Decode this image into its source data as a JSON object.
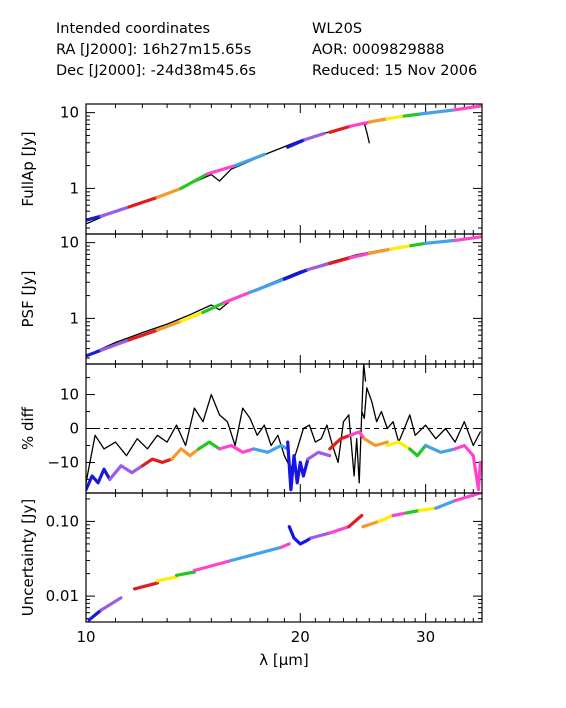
{
  "header": {
    "left": [
      "Intended coordinates",
      "RA  [J2000]: 16h27m15.65s",
      "Dec [J2000]: -24d38m45.6s"
    ],
    "right": [
      "WL20S",
      "AOR:  0009829888",
      "Reduced: 15 Nov 2006"
    ]
  },
  "colors": {
    "reference": "#000000",
    "segments": [
      "#1b1bd6",
      "#9b5de5",
      "#e21c1c",
      "#f59a2a",
      "#22c722",
      "#ff44cc",
      "#44a0e8",
      "#ffee00",
      "#1515e8",
      "#e5e5e5"
    ]
  },
  "chart_data": [
    {
      "type": "line",
      "ylabel": "FullAp [Jy]",
      "yscale": "log",
      "ylim": [
        0.25,
        13
      ],
      "yticks": [
        1,
        10
      ],
      "ytick_labels": [
        "1",
        "10"
      ],
      "xlim": [
        10,
        36
      ],
      "series": [
        {
          "color": "#000000",
          "x": [
            10,
            11,
            12,
            13,
            14,
            15,
            15.4,
            16,
            18,
            20,
            22,
            24,
            24.7,
            25,
            26,
            28,
            30,
            32,
            34,
            35.8
          ],
          "y": [
            0.34,
            0.5,
            0.67,
            0.85,
            1.15,
            1.52,
            1.25,
            1.8,
            2.9,
            4.3,
            5.6,
            7.0,
            7.0,
            7.5,
            8.2,
            9.1,
            10.0,
            10.7,
            11.4,
            12.2
          ]
        },
        {
          "color": "#000000",
          "x": [
            24.6,
            24.8,
            25.0
          ],
          "y": [
            7.2,
            5.5,
            4.0
          ]
        },
        {
          "color": "#1b1bd6",
          "x": [
            10.0,
            10.5
          ],
          "y": [
            0.38,
            0.43
          ]
        },
        {
          "color": "#9b5de5",
          "x": [
            10.5,
            11.5
          ],
          "y": [
            0.43,
            0.57
          ]
        },
        {
          "color": "#e21c1c",
          "x": [
            11.5,
            12.6
          ],
          "y": [
            0.57,
            0.76
          ]
        },
        {
          "color": "#f59a2a",
          "x": [
            12.6,
            13.6
          ],
          "y": [
            0.76,
            1.0
          ]
        },
        {
          "color": "#22c722",
          "x": [
            13.6,
            14.8
          ],
          "y": [
            1.0,
            1.55
          ]
        },
        {
          "color": "#ff44cc",
          "x": [
            14.8,
            16.2
          ],
          "y": [
            1.55,
            2.0
          ]
        },
        {
          "color": "#44a0e8",
          "x": [
            16.2,
            17.8
          ],
          "y": [
            2.0,
            2.8
          ]
        },
        {
          "color": "#1515e8",
          "x": [
            19.2,
            20.3
          ],
          "y": [
            3.5,
            4.4
          ]
        },
        {
          "color": "#9b5de5",
          "x": [
            20.3,
            21.6
          ],
          "y": [
            4.4,
            5.3
          ]
        },
        {
          "color": "#e21c1c",
          "x": [
            22.0,
            23.5
          ],
          "y": [
            5.5,
            6.6
          ]
        },
        {
          "color": "#ff44cc",
          "x": [
            23.5,
            25.0
          ],
          "y": [
            6.6,
            7.5
          ]
        },
        {
          "color": "#f59a2a",
          "x": [
            25.0,
            26.5
          ],
          "y": [
            7.5,
            8.3
          ]
        },
        {
          "color": "#ffee00",
          "x": [
            26.5,
            28.0
          ],
          "y": [
            8.3,
            9.0
          ]
        },
        {
          "color": "#22c722",
          "x": [
            28.0,
            29.5
          ],
          "y": [
            9.0,
            9.6
          ]
        },
        {
          "color": "#44a0e8",
          "x": [
            29.5,
            33.0
          ],
          "y": [
            9.6,
            10.9
          ]
        },
        {
          "color": "#ff44cc",
          "x": [
            33.0,
            35.8
          ],
          "y": [
            10.9,
            12.2
          ]
        }
      ]
    },
    {
      "type": "line",
      "ylabel": "PSF [Jy]",
      "yscale": "log",
      "ylim": [
        0.25,
        13
      ],
      "yticks": [
        1,
        10
      ],
      "ytick_labels": [
        "1",
        "10"
      ],
      "xlim": [
        10,
        36
      ],
      "series": [
        {
          "color": "#000000",
          "x": [
            10,
            11,
            12,
            13,
            14,
            15,
            15.4,
            16,
            18,
            20,
            22,
            24,
            26,
            28,
            30,
            32,
            34,
            35.8
          ],
          "y": [
            0.32,
            0.48,
            0.65,
            0.84,
            1.12,
            1.5,
            1.3,
            1.75,
            2.8,
            4.2,
            5.5,
            6.9,
            8.0,
            9.0,
            9.8,
            10.6,
            11.2,
            11.9
          ]
        },
        {
          "color": "#1b1bd6",
          "x": [
            10.0,
            10.5
          ],
          "y": [
            0.32,
            0.38
          ]
        },
        {
          "color": "#9b5de5",
          "x": [
            10.5,
            11.5
          ],
          "y": [
            0.38,
            0.52
          ]
        },
        {
          "color": "#e21c1c",
          "x": [
            11.5,
            12.6
          ],
          "y": [
            0.52,
            0.7
          ]
        },
        {
          "color": "#f59a2a",
          "x": [
            12.6,
            13.6
          ],
          "y": [
            0.7,
            0.92
          ]
        },
        {
          "color": "#ffee00",
          "x": [
            13.6,
            14.6
          ],
          "y": [
            0.92,
            1.2
          ]
        },
        {
          "color": "#22c722",
          "x": [
            14.6,
            15.6
          ],
          "y": [
            1.2,
            1.6
          ]
        },
        {
          "color": "#ff44cc",
          "x": [
            15.6,
            17.0
          ],
          "y": [
            1.6,
            2.2
          ]
        },
        {
          "color": "#44a0e8",
          "x": [
            17.0,
            19.0
          ],
          "y": [
            2.2,
            3.3
          ]
        },
        {
          "color": "#1515e8",
          "x": [
            19.0,
            20.5
          ],
          "y": [
            3.3,
            4.4
          ]
        },
        {
          "color": "#9b5de5",
          "x": [
            20.5,
            22.0
          ],
          "y": [
            4.4,
            5.3
          ]
        },
        {
          "color": "#e21c1c",
          "x": [
            22.0,
            23.5
          ],
          "y": [
            5.3,
            6.3
          ]
        },
        {
          "color": "#ff44cc",
          "x": [
            23.5,
            25.0
          ],
          "y": [
            6.3,
            7.2
          ]
        },
        {
          "color": "#f59a2a",
          "x": [
            25.0,
            26.8
          ],
          "y": [
            7.2,
            8.2
          ]
        },
        {
          "color": "#ffee00",
          "x": [
            26.8,
            28.6
          ],
          "y": [
            8.2,
            9.1
          ]
        },
        {
          "color": "#22c722",
          "x": [
            28.6,
            30.0
          ],
          "y": [
            9.1,
            9.8
          ]
        },
        {
          "color": "#44a0e8",
          "x": [
            30.0,
            33.0
          ],
          "y": [
            9.8,
            10.7
          ]
        },
        {
          "color": "#ff44cc",
          "x": [
            33.0,
            35.8
          ],
          "y": [
            10.7,
            11.9
          ]
        }
      ]
    },
    {
      "type": "line",
      "ylabel": "% diff",
      "yscale": "linear",
      "ylim": [
        -19,
        19
      ],
      "yticks": [
        10,
        0,
        -10
      ],
      "ytick_labels": [
        "10",
        "0",
        "−10"
      ],
      "xlim": [
        10,
        36
      ],
      "reference_line": 0,
      "series": [
        {
          "color": "#000000",
          "x": [
            10,
            10.3,
            10.6,
            11.0,
            11.4,
            11.8,
            12.2,
            12.6,
            13.0,
            13.4,
            13.8,
            14.2,
            14.6,
            15.0,
            15.4,
            15.8,
            16.2,
            16.6,
            17.0,
            17.4,
            17.8,
            18.2,
            18.6,
            19.0,
            19.4,
            19.8,
            20.2,
            20.6,
            21.0,
            21.4,
            21.8,
            22.2,
            22.6,
            23.0,
            23.4,
            23.8,
            24.0,
            24.2,
            24.4,
            24.6,
            24.8,
            25.2,
            25.6,
            26.0,
            26.5,
            27.0,
            27.5,
            28.0,
            28.5,
            29.0,
            30.0,
            31.0,
            32.0,
            33.0,
            34.0,
            35.0,
            35.8
          ],
          "y": [
            -16,
            -2,
            -6,
            -4,
            -8,
            -3,
            -6,
            -2,
            -4,
            1,
            -5,
            6,
            2,
            10,
            4,
            2,
            -5,
            6,
            3,
            -2,
            1,
            -5,
            -2,
            -8,
            -12,
            -6,
            0,
            1,
            -4,
            -3,
            1,
            -5,
            -10,
            2,
            4,
            -14,
            -3,
            -16,
            5,
            3,
            12,
            8,
            2,
            5,
            0,
            2,
            -4,
            0,
            4,
            -2,
            1,
            -3,
            0,
            -4,
            2,
            -5,
            -1
          ]
        },
        {
          "color": "#000000",
          "x": [
            24.4,
            24.55,
            24.7
          ],
          "y": [
            5,
            19,
            14
          ]
        },
        {
          "color": "#1b1bd6",
          "x": [
            10.0,
            10.2,
            10.4,
            10.6,
            10.8
          ],
          "y": [
            -18,
            -14,
            -16,
            -12,
            -15
          ]
        },
        {
          "color": "#9b5de5",
          "x": [
            10.8,
            11.2,
            11.6,
            12.0
          ],
          "y": [
            -15,
            -11,
            -13,
            -11
          ]
        },
        {
          "color": "#e21c1c",
          "x": [
            12.0,
            12.4,
            12.8,
            13.2
          ],
          "y": [
            -11,
            -9,
            -10,
            -9
          ]
        },
        {
          "color": "#f59a2a",
          "x": [
            13.2,
            13.6,
            14.0,
            14.4
          ],
          "y": [
            -9,
            -6,
            -8,
            -6
          ]
        },
        {
          "color": "#22c722",
          "x": [
            14.4,
            14.9,
            15.4
          ],
          "y": [
            -6,
            -4,
            -6
          ]
        },
        {
          "color": "#ff44cc",
          "x": [
            15.4,
            16.0,
            16.6,
            17.2
          ],
          "y": [
            -6,
            -5,
            -7,
            -6
          ]
        },
        {
          "color": "#44a0e8",
          "x": [
            17.2,
            18.0,
            18.8,
            19.2
          ],
          "y": [
            -6,
            -7,
            -5,
            -6
          ]
        },
        {
          "color": "#1515e8",
          "x": [
            19.2,
            19.4,
            19.6,
            19.8,
            20.0,
            20.2,
            20.5
          ],
          "y": [
            -4,
            -18,
            -8,
            -16,
            -10,
            -14,
            -9
          ]
        },
        {
          "color": "#9b5de5",
          "x": [
            20.5,
            21.2,
            22.0
          ],
          "y": [
            -9,
            -7,
            -8
          ]
        },
        {
          "color": "#e21c1c",
          "x": [
            22.0,
            22.8,
            23.5
          ],
          "y": [
            -6,
            -3,
            -2
          ]
        },
        {
          "color": "#ff44cc",
          "x": [
            23.5,
            24.2,
            24.6
          ],
          "y": [
            -2,
            -1,
            -3
          ]
        },
        {
          "color": "#f59a2a",
          "x": [
            24.6,
            25.5,
            26.5
          ],
          "y": [
            -3,
            -5,
            -4
          ]
        },
        {
          "color": "#ffee00",
          "x": [
            26.5,
            27.5,
            28.5
          ],
          "y": [
            -5,
            -4,
            -6
          ]
        },
        {
          "color": "#22c722",
          "x": [
            28.5,
            29.2,
            30.0
          ],
          "y": [
            -6,
            -8,
            -5
          ]
        },
        {
          "color": "#44a0e8",
          "x": [
            30.0,
            31.5,
            33.0
          ],
          "y": [
            -5,
            -7,
            -6
          ]
        },
        {
          "color": "#ff44cc",
          "x": [
            33.0,
            34.0,
            35.0,
            35.6,
            35.8
          ],
          "y": [
            -6,
            -5,
            -8,
            -18,
            -10
          ]
        }
      ]
    },
    {
      "type": "line",
      "ylabel": "Uncertainty [Jy]",
      "yscale": "log",
      "ylim": [
        0.0045,
        0.24
      ],
      "yticks": [
        0.01,
        0.1
      ],
      "ytick_labels": [
        "0.01",
        "0.10"
      ],
      "xlim": [
        10,
        36
      ],
      "xticks": [
        10,
        20,
        30
      ],
      "xtick_labels": [
        "10",
        "20",
        "30"
      ],
      "xlabel": "λ [μm]",
      "series": [
        {
          "color": "#1b1bd6",
          "x": [
            10.1,
            10.5
          ],
          "y": [
            0.0048,
            0.0065
          ]
        },
        {
          "color": "#9b5de5",
          "x": [
            10.5,
            11.2
          ],
          "y": [
            0.0065,
            0.0095
          ]
        },
        {
          "color": "#e21c1c",
          "x": [
            11.7,
            12.6
          ],
          "y": [
            0.0125,
            0.015
          ]
        },
        {
          "color": "#ffee00",
          "x": [
            12.6,
            13.4
          ],
          "y": [
            0.016,
            0.018
          ]
        },
        {
          "color": "#22c722",
          "x": [
            13.4,
            14.2
          ],
          "y": [
            0.019,
            0.021
          ]
        },
        {
          "color": "#ff44cc",
          "x": [
            14.2,
            16.0
          ],
          "y": [
            0.022,
            0.03
          ]
        },
        {
          "color": "#44a0e8",
          "x": [
            16.0,
            18.8
          ],
          "y": [
            0.03,
            0.045
          ]
        },
        {
          "color": "#ff44cc",
          "x": [
            18.8,
            19.3
          ],
          "y": [
            0.045,
            0.05
          ]
        },
        {
          "color": "#1515e8",
          "x": [
            19.3,
            19.6,
            20.0,
            20.4,
            20.7
          ],
          "y": [
            0.085,
            0.06,
            0.05,
            0.055,
            0.06
          ]
        },
        {
          "color": "#9b5de5",
          "x": [
            20.7,
            22.0
          ],
          "y": [
            0.06,
            0.07
          ]
        },
        {
          "color": "#ff44cc",
          "x": [
            22.0,
            23.4
          ],
          "y": [
            0.07,
            0.085
          ]
        },
        {
          "color": "#e21c1c",
          "x": [
            23.4,
            24.0,
            24.4
          ],
          "y": [
            0.085,
            0.105,
            0.12
          ]
        },
        {
          "color": "#f59a2a",
          "x": [
            24.5,
            25.8
          ],
          "y": [
            0.085,
            0.1
          ]
        },
        {
          "color": "#ffee00",
          "x": [
            25.8,
            27.0
          ],
          "y": [
            0.1,
            0.12
          ]
        },
        {
          "color": "#ff44cc",
          "x": [
            27.0,
            28.2
          ],
          "y": [
            0.12,
            0.13
          ]
        },
        {
          "color": "#22c722",
          "x": [
            28.2,
            29.4
          ],
          "y": [
            0.13,
            0.14
          ]
        },
        {
          "color": "#ffee00",
          "x": [
            29.4,
            31.0
          ],
          "y": [
            0.14,
            0.15
          ]
        },
        {
          "color": "#44a0e8",
          "x": [
            31.0,
            33.0
          ],
          "y": [
            0.15,
            0.19
          ]
        },
        {
          "color": "#ff44cc",
          "x": [
            33.0,
            35.8
          ],
          "y": [
            0.19,
            0.24
          ]
        }
      ]
    }
  ]
}
